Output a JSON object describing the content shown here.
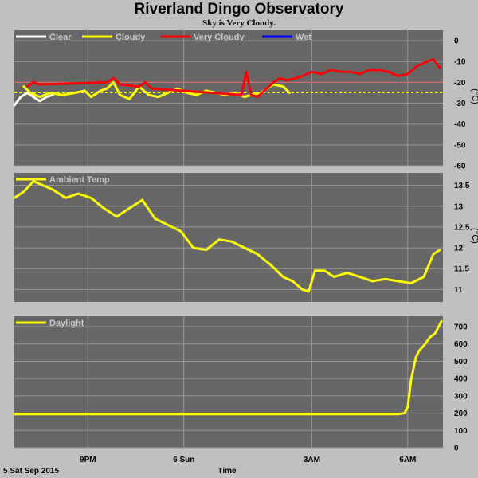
{
  "colors": {
    "background": "#c0c0c0",
    "plot_bg": "#666666",
    "grid": "#9a9a9a",
    "legend_text": "#c8c8c8",
    "clear": "#ffffff",
    "cloudy": "#ffff00",
    "very_cloudy": "#ff0000",
    "wet": "#0000ff",
    "threshold_red": "#ff4d4d",
    "threshold_yellow": "#ffff00"
  },
  "chart_data": [
    {
      "type": "line",
      "panel": "sky",
      "title": "Riverland Dingo Observatory",
      "subtitle": "Sky is Very Cloudy.",
      "ylabel": "(°C)",
      "ylim": [
        -60,
        5
      ],
      "yticks": [
        0,
        -10,
        -20,
        -30,
        -40,
        -50,
        -60
      ],
      "xlim": [
        0,
        13.4
      ],
      "thresholds": [
        -20,
        -25
      ],
      "legend": [
        "Clear",
        "Cloudy",
        "Very Cloudy",
        "Wet"
      ],
      "series": [
        {
          "name": "Clear",
          "x": [
            0,
            0.2,
            0.4,
            0.6,
            0.8,
            1.0,
            1.2
          ],
          "y": [
            -31,
            -27,
            -25,
            -27,
            -29,
            -27,
            -26
          ]
        },
        {
          "name": "Cloudy",
          "x": [
            0.3,
            0.5,
            0.8,
            1.1,
            1.5,
            1.9,
            2.2,
            2.4,
            2.7,
            2.9,
            3.1,
            3.3,
            3.6,
            3.9,
            4.2,
            4.5,
            4.8,
            5.1,
            5.4,
            5.7,
            6.0,
            6.3,
            6.6,
            6.9,
            7.2,
            7.4,
            7.7,
            7.9,
            8.1,
            8.4,
            8.6
          ],
          "y": [
            -22,
            -25,
            -27,
            -25,
            -26,
            -25,
            -24,
            -27,
            -24,
            -23,
            -20,
            -26,
            -28,
            -22,
            -26,
            -27,
            -25,
            -23,
            -25,
            -26,
            -24,
            -25,
            -26,
            -25,
            -27,
            -26,
            -25,
            -23,
            -21,
            -22,
            -25
          ]
        },
        {
          "name": "Very Cloudy",
          "x": [
            0.4,
            0.6,
            0.8,
            2.9,
            3.1,
            3.3,
            3.9,
            4.1,
            4.3,
            7.1,
            7.25,
            7.4,
            7.6,
            8.1,
            8.3,
            8.5,
            8.8,
            9.0,
            9.3,
            9.6,
            9.9,
            10.2,
            10.5,
            10.8,
            11.1,
            11.4,
            11.7,
            12.0,
            12.3,
            12.6,
            12.9,
            13.1,
            13.3
          ],
          "y": [
            -22,
            -20,
            -21,
            -20,
            -18,
            -21,
            -22,
            -20,
            -23,
            -26,
            -15,
            -26,
            -27,
            -20,
            -18,
            -19,
            -18,
            -17,
            -15,
            -16,
            -14,
            -15,
            -15,
            -16,
            -14,
            -14,
            -15,
            -17,
            -16,
            -12,
            -10,
            -9,
            -13
          ]
        },
        {
          "name": "Wet",
          "x": [],
          "y": []
        }
      ]
    },
    {
      "type": "line",
      "panel": "ambient",
      "ylabel": "(°C)",
      "ylim": [
        10.7,
        13.8
      ],
      "yticks": [
        13.5,
        13.0,
        12.5,
        12.0,
        11.5,
        11.0
      ],
      "xlim": [
        0,
        13.4
      ],
      "legend": [
        "Ambient Temp"
      ],
      "series": [
        {
          "name": "Ambient Temp",
          "x": [
            0,
            0.3,
            0.6,
            0.9,
            1.2,
            1.6,
            2.0,
            2.4,
            2.8,
            3.2,
            3.6,
            4.0,
            4.4,
            4.8,
            5.2,
            5.6,
            6.0,
            6.4,
            6.8,
            7.2,
            7.6,
            8.0,
            8.4,
            8.7,
            9.0,
            9.2,
            9.4,
            9.7,
            10.0,
            10.4,
            10.8,
            11.2,
            11.6,
            12.0,
            12.4,
            12.8,
            13.1,
            13.3
          ],
          "y": [
            13.2,
            13.35,
            13.6,
            13.5,
            13.4,
            13.2,
            13.3,
            13.2,
            12.95,
            12.75,
            12.95,
            13.15,
            12.7,
            12.55,
            12.4,
            12.0,
            11.95,
            12.2,
            12.15,
            12.0,
            11.85,
            11.6,
            11.3,
            11.2,
            11.0,
            10.95,
            11.45,
            11.45,
            11.3,
            11.4,
            11.3,
            11.2,
            11.25,
            11.2,
            11.15,
            11.3,
            11.85,
            11.95
          ]
        }
      ]
    },
    {
      "type": "line",
      "panel": "daylight",
      "ylim": [
        0,
        760
      ],
      "yticks": [
        700,
        600,
        500,
        400,
        300,
        200,
        100,
        0
      ],
      "xlim": [
        0,
        13.4
      ],
      "legend": [
        "Daylight"
      ],
      "xticklabels": [
        {
          "x": 2.3,
          "label": "9PM"
        },
        {
          "x": 5.3,
          "label": "6 Sun"
        },
        {
          "x": 9.3,
          "label": "3AM"
        },
        {
          "x": 12.3,
          "label": "6AM"
        }
      ],
      "xlabel": "Time",
      "date_label": "5 Sat Sep 2015",
      "series": [
        {
          "name": "Daylight",
          "x": [
            0,
            2,
            4,
            6,
            8,
            10,
            12.0,
            12.2,
            12.3,
            12.4,
            12.55,
            12.65,
            12.8,
            13.0,
            13.15,
            13.35
          ],
          "y": [
            195,
            195,
            195,
            195,
            195,
            195,
            195,
            200,
            235,
            390,
            520,
            560,
            590,
            640,
            660,
            730
          ]
        }
      ]
    }
  ]
}
